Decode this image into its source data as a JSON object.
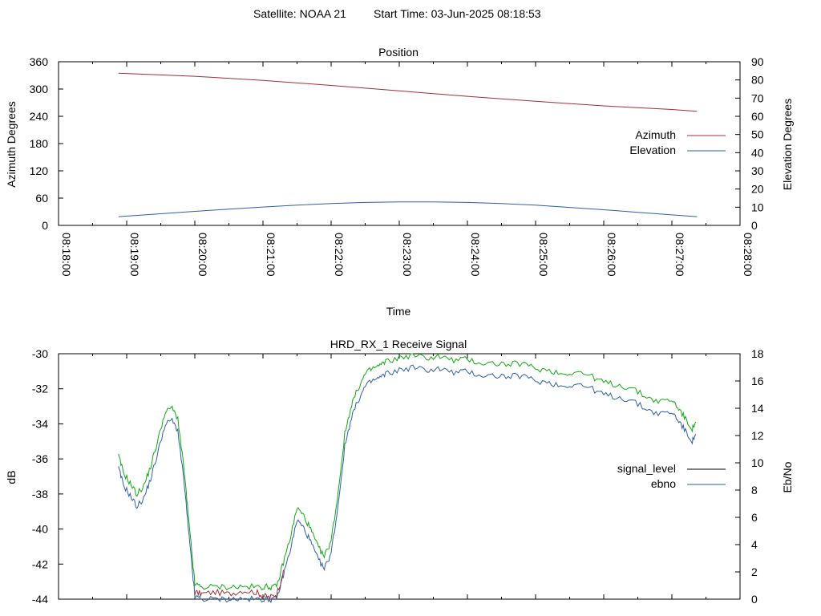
{
  "header": {
    "satellite_text": "Satellite: NOAA 21",
    "start_time_text": "Start Time: 03-Jun-2025 08:18:53"
  },
  "colors": {
    "azimuth": "#a0303a",
    "elevation": "#2f5fa8",
    "signal_level": "#000000",
    "ebno_line": "#2f5fa8",
    "ebno_green": "#11a811",
    "border": "#000000",
    "background": "#ffffff"
  },
  "chart_data": [
    {
      "type": "line",
      "title": "Position",
      "xlabel": "Time",
      "ylabel": "Azimuth Degrees",
      "y2label": "Elevation Degrees",
      "ylim": [
        0,
        360
      ],
      "y2lim": [
        0,
        90
      ],
      "yticks": [
        "360",
        "300",
        "240",
        "180",
        "120",
        "60",
        "0"
      ],
      "y2ticks": [
        "90",
        "80",
        "70",
        "60",
        "50",
        "40",
        "30",
        "20",
        "10",
        "0"
      ],
      "xticks": [
        "08:18:00",
        "08:19:00",
        "08:20:00",
        "08:21:00",
        "08:22:00",
        "08:23:00",
        "08:24:00",
        "08:25:00",
        "08:26:00",
        "08:27:00",
        "08:28:00"
      ],
      "xlim_minutes": [
        0,
        10
      ],
      "grid": false,
      "legend_position": "right",
      "series": [
        {
          "name": "Azimuth",
          "axis": "left",
          "x_minutes": [
            0.88,
            2,
            3,
            4,
            5,
            6,
            7,
            8,
            9,
            9.37
          ],
          "values": [
            335,
            328,
            319,
            308,
            296,
            284,
            273,
            263,
            255,
            251
          ]
        },
        {
          "name": "Elevation",
          "axis": "right",
          "x_minutes": [
            0.88,
            1.5,
            2,
            2.5,
            3,
            3.5,
            4,
            4.5,
            5,
            5.5,
            6,
            6.5,
            7,
            7.5,
            8,
            8.5,
            9,
            9.37
          ],
          "values": [
            4.8,
            6.4,
            7.7,
            8.9,
            10.1,
            11.1,
            12.0,
            12.6,
            12.9,
            12.9,
            12.6,
            12.0,
            11.1,
            9.9,
            8.6,
            7.2,
            5.8,
            4.8
          ]
        }
      ]
    },
    {
      "type": "line",
      "title": "HRD_RX_1 Receive Signal",
      "ylabel": "dB",
      "y2label": "Eb/No",
      "ylim": [
        -44,
        -30
      ],
      "y2lim": [
        0,
        18
      ],
      "yticks": [
        "-30",
        "-32",
        "-34",
        "-36",
        "-38",
        "-40",
        "-42",
        "-44"
      ],
      "y2ticks": [
        "18",
        "16",
        "14",
        "12",
        "10",
        "8",
        "6",
        "4",
        "2",
        "0"
      ],
      "xlim_minutes": [
        0,
        10
      ],
      "grid": false,
      "legend_position": "right",
      "series": [
        {
          "name": "signal_level",
          "axis": "left",
          "x_minutes": [
            0.88,
            0.95,
            1.05,
            1.15,
            1.25,
            1.35,
            1.45,
            1.55,
            1.65,
            1.75,
            1.85,
            1.9,
            1.95,
            2.0,
            2.1,
            2.3,
            2.5,
            2.7,
            2.9,
            3.0,
            3.1,
            3.2,
            3.3,
            3.4,
            3.5,
            3.6,
            3.7,
            3.8,
            3.9,
            4.0,
            4.1,
            4.2,
            4.3,
            4.4,
            4.5,
            4.6,
            4.7,
            4.8,
            5.0,
            5.2,
            5.4,
            5.6,
            5.8,
            6.0,
            6.2,
            6.4,
            6.6,
            6.8,
            7.0,
            7.2,
            7.4,
            7.6,
            7.8,
            8.0,
            8.2,
            8.4,
            8.6,
            8.8,
            9.0,
            9.1,
            9.2,
            9.3,
            9.35
          ],
          "values": [
            -38.8,
            -39.8,
            -40.6,
            -42.2,
            -41.7,
            -40.1,
            -38.7,
            -36.2,
            -35.4,
            -35.8,
            -39.5,
            -41.0,
            -43.0,
            -43.6,
            -43.7,
            -43.6,
            -43.7,
            -43.5,
            -43.6,
            -43.8,
            -43.9,
            -43.7,
            -42.5,
            -41.2,
            -40.5,
            -41.3,
            -42.1,
            -43.2,
            -43.5,
            -42.8,
            -40.0,
            -36.5,
            -34.4,
            -33.5,
            -33.0,
            -32.7,
            -32.4,
            -32.2,
            -31.9,
            -31.7,
            -31.9,
            -31.6,
            -31.8,
            -31.7,
            -32.0,
            -31.9,
            -31.9,
            -31.8,
            -32.1,
            -32.2,
            -32.4,
            -32.2,
            -32.4,
            -32.7,
            -32.8,
            -33.1,
            -33.5,
            -33.9,
            -33.8,
            -34.1,
            -34.6,
            -35.0,
            -34.4
          ]
        },
        {
          "name": "ebno",
          "axis": "right",
          "x_minutes": [
            0.88,
            0.95,
            1.05,
            1.15,
            1.25,
            1.35,
            1.45,
            1.55,
            1.65,
            1.75,
            1.85,
            1.9,
            1.95,
            2.0,
            2.1,
            2.3,
            2.5,
            2.7,
            2.9,
            3.0,
            3.1,
            3.2,
            3.3,
            3.4,
            3.5,
            3.6,
            3.7,
            3.8,
            3.9,
            4.0,
            4.1,
            4.2,
            4.3,
            4.4,
            4.5,
            4.6,
            4.7,
            4.8,
            5.0,
            5.2,
            5.4,
            5.6,
            5.8,
            6.0,
            6.2,
            6.4,
            6.6,
            6.8,
            7.0,
            7.2,
            7.4,
            7.6,
            7.8,
            8.0,
            8.2,
            8.4,
            8.6,
            8.8,
            9.0,
            9.1,
            9.2,
            9.3,
            9.35
          ],
          "values": [
            9.6,
            8.4,
            7.6,
            6.8,
            7.4,
            8.8,
            10.6,
            12.6,
            13.2,
            12.4,
            8.2,
            5.4,
            2.8,
            0.2,
            0.0,
            0.0,
            0.0,
            0.0,
            0.0,
            0.0,
            0.0,
            0.0,
            1.8,
            3.6,
            5.8,
            5.2,
            4.2,
            3.0,
            2.2,
            3.4,
            6.8,
            11.2,
            13.4,
            14.6,
            15.6,
            16.0,
            16.2,
            16.5,
            16.8,
            17.0,
            16.8,
            16.9,
            16.6,
            16.7,
            16.4,
            16.4,
            16.3,
            16.4,
            16.0,
            15.9,
            15.6,
            15.8,
            15.5,
            15.0,
            14.8,
            14.6,
            14.0,
            13.6,
            13.7,
            13.1,
            12.3,
            11.6,
            12.1
          ]
        }
      ]
    }
  ]
}
